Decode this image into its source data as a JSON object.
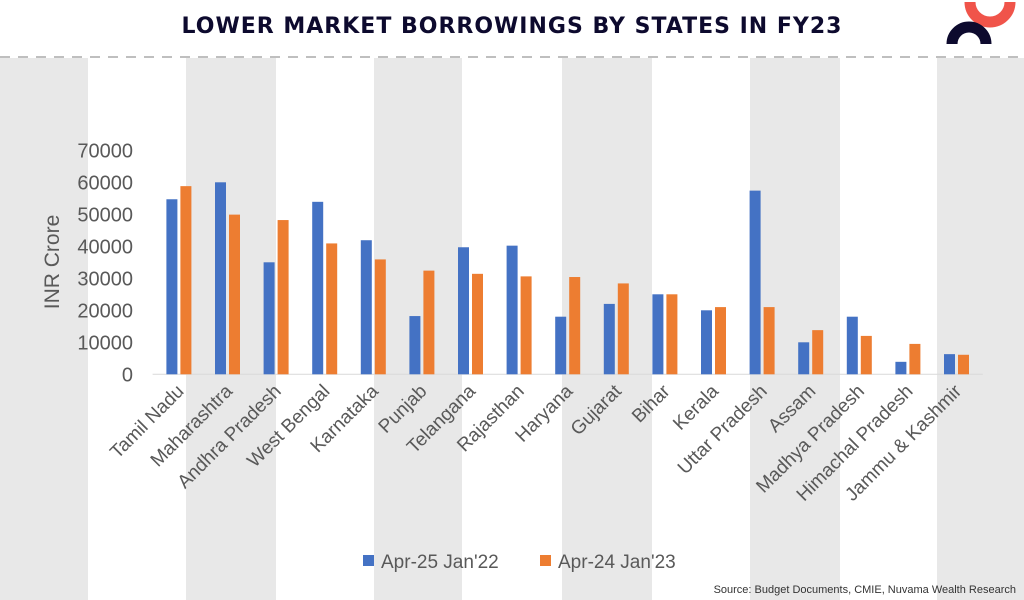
{
  "header": {
    "title": "LOWER MARKET BORROWINGS BY STATES IN FY23",
    "logo": "nuvama-logo"
  },
  "footer": {
    "source": "Source: Budget Documents, CMIE, Nuvama Wealth Research"
  },
  "colors": {
    "series1": "#4472c4",
    "series2": "#ed7d31",
    "band": "#e8e8e8",
    "title": "#0d0a2e",
    "logo_red": "#f0544a",
    "logo_dark": "#0d0a2e"
  },
  "chart_data": {
    "type": "bar",
    "title": "LOWER MARKET BORROWINGS BY STATES IN FY23",
    "xlabel": "",
    "ylabel": "INR Crore",
    "ylim": [
      0,
      70000
    ],
    "yticks": [
      0,
      10000,
      20000,
      30000,
      40000,
      50000,
      60000,
      70000
    ],
    "grid": false,
    "legend": "bottom",
    "categories": [
      "Tamil Nadu",
      "Maharashtra",
      "Andhra Pradesh",
      "West Bengal",
      "Karnataka",
      "Punjab",
      "Telangana",
      "Rajasthan",
      "Haryana",
      "Gujarat",
      "Bihar",
      "Kerala",
      "Uttar Pradesh",
      "Assam",
      "Madhya Pradesh",
      "Himachal Pradesh",
      "Jammu & Kashmir"
    ],
    "series": [
      {
        "name": "Apr-25 Jan'22",
        "values": [
          54700,
          60000,
          35000,
          53900,
          41900,
          18200,
          39700,
          40200,
          18000,
          22000,
          25000,
          20000,
          57400,
          10000,
          18000,
          3900,
          6300
        ]
      },
      {
        "name": "Apr-24 Jan'23",
        "values": [
          58800,
          49900,
          48200,
          40900,
          35900,
          32400,
          31400,
          30600,
          30400,
          28400,
          25000,
          21000,
          21000,
          13800,
          12000,
          9500,
          6100
        ]
      }
    ]
  }
}
